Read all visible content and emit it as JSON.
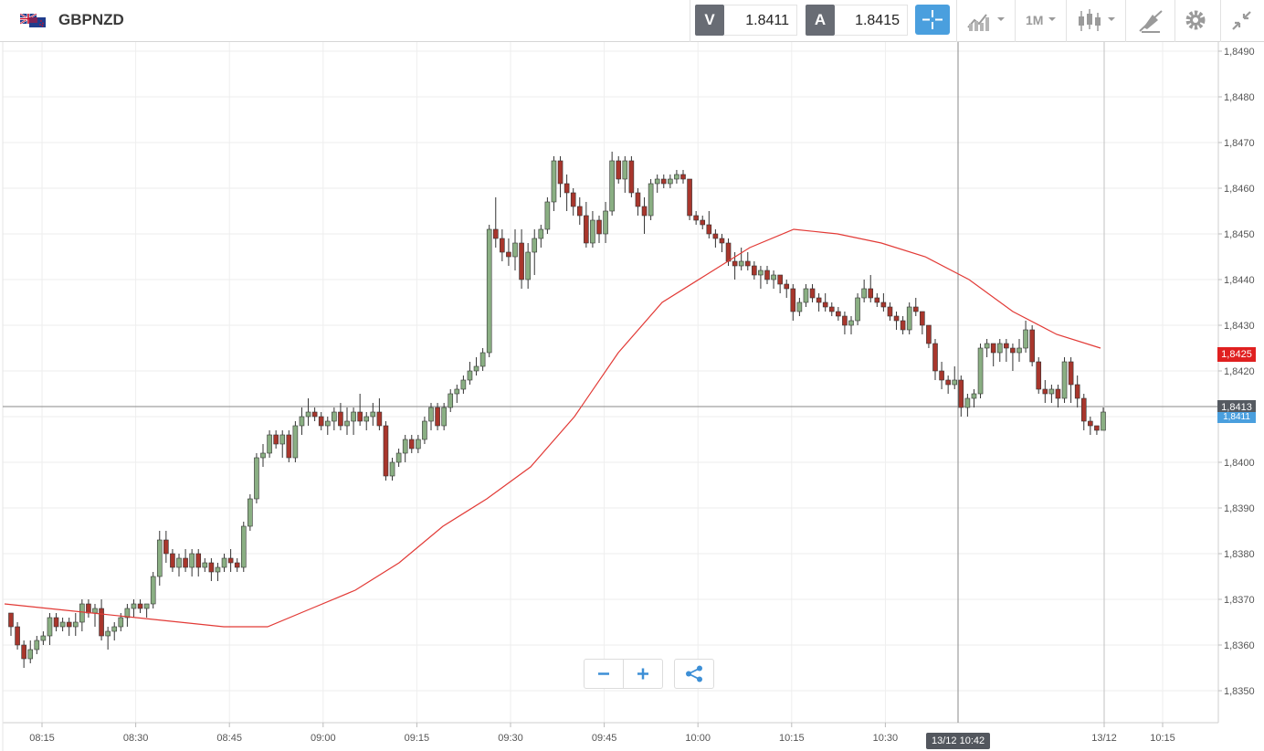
{
  "header": {
    "symbol": "GBPNZD",
    "flag_icon": "gbp-nzd-flag-icon",
    "bid_label": "V",
    "bid_value": "1.8411",
    "ask_label": "A",
    "ask_value": "1.8415",
    "tools": {
      "crosshair": "crosshair-icon",
      "indicators": "indicators-icon",
      "timeframe": "1M",
      "chart_type": "candlestick-icon",
      "draw": "draw-icon",
      "settings": "gear-icon",
      "collapse": "collapse-icon"
    }
  },
  "colors": {
    "up_candle": "#8aaf83",
    "down_candle": "#a8362c",
    "ma_line": "#e23a36",
    "accent": "#4a9fde",
    "last_price_tag": "#e02020",
    "bid_tag": "#4a9fde",
    "crosshair_tag": "#555a61"
  },
  "chart_data": {
    "type": "candlestick",
    "ylim": [
      1.8343,
      1.8492
    ],
    "y_ticks": [
      "1,8350",
      "1,8360",
      "1,8370",
      "1,8380",
      "1,8390",
      "1,8400",
      "1,8410",
      "1,8420",
      "1,8430",
      "1,8440",
      "1,8450",
      "1,8460",
      "1,8470",
      "1,8480",
      "1,8490"
    ],
    "x_ticks": [
      "08:15",
      "08:30",
      "08:45",
      "09:00",
      "09:15",
      "09:30",
      "09:45",
      "10:00",
      "10:15",
      "10:30",
      "13/12",
      "10:15"
    ],
    "candles": [
      [
        1.8367,
        1.8367,
        1.8362,
        1.8364
      ],
      [
        1.8364,
        1.8365,
        1.8359,
        1.836
      ],
      [
        1.836,
        1.8361,
        1.8355,
        1.8357
      ],
      [
        1.8357,
        1.8361,
        1.8356,
        1.8359
      ],
      [
        1.8359,
        1.8362,
        1.8358,
        1.8361
      ],
      [
        1.8361,
        1.8363,
        1.836,
        1.8362
      ],
      [
        1.8362,
        1.8367,
        1.836,
        1.8366
      ],
      [
        1.8366,
        1.8367,
        1.8363,
        1.8364
      ],
      [
        1.8364,
        1.8366,
        1.8363,
        1.8365
      ],
      [
        1.8365,
        1.8366,
        1.8362,
        1.8364
      ],
      [
        1.8364,
        1.8367,
        1.8362,
        1.8365
      ],
      [
        1.8365,
        1.837,
        1.8363,
        1.8369
      ],
      [
        1.8369,
        1.837,
        1.8366,
        1.8367
      ],
      [
        1.8367,
        1.8369,
        1.8364,
        1.8368
      ],
      [
        1.8368,
        1.837,
        1.8361,
        1.8362
      ],
      [
        1.8362,
        1.8364,
        1.8359,
        1.8363
      ],
      [
        1.8363,
        1.8365,
        1.8361,
        1.8364
      ],
      [
        1.8364,
        1.8367,
        1.8363,
        1.8366
      ],
      [
        1.8366,
        1.8369,
        1.8364,
        1.8368
      ],
      [
        1.8368,
        1.837,
        1.8366,
        1.8369
      ],
      [
        1.8369,
        1.837,
        1.8367,
        1.8368
      ],
      [
        1.8368,
        1.8369,
        1.8366,
        1.8369
      ],
      [
        1.8369,
        1.8376,
        1.8368,
        1.8375
      ],
      [
        1.8375,
        1.8385,
        1.8373,
        1.8383
      ],
      [
        1.8383,
        1.8385,
        1.8378,
        1.838
      ],
      [
        1.838,
        1.8381,
        1.8376,
        1.8377
      ],
      [
        1.8377,
        1.838,
        1.8375,
        1.8379
      ],
      [
        1.8379,
        1.8381,
        1.8376,
        1.8377
      ],
      [
        1.8377,
        1.8381,
        1.8375,
        1.838
      ],
      [
        1.838,
        1.8381,
        1.8375,
        1.8377
      ],
      [
        1.8377,
        1.8379,
        1.8376,
        1.8378
      ],
      [
        1.8378,
        1.8379,
        1.8374,
        1.8376
      ],
      [
        1.8376,
        1.8378,
        1.8374,
        1.8377
      ],
      [
        1.8377,
        1.838,
        1.8376,
        1.8379
      ],
      [
        1.8379,
        1.8381,
        1.8376,
        1.8378
      ],
      [
        1.8378,
        1.8379,
        1.8376,
        1.8377
      ],
      [
        1.8377,
        1.8387,
        1.8376,
        1.8386
      ],
      [
        1.8386,
        1.8393,
        1.8385,
        1.8392
      ],
      [
        1.8392,
        1.8402,
        1.8391,
        1.8401
      ],
      [
        1.8401,
        1.8404,
        1.8399,
        1.8402
      ],
      [
        1.8402,
        1.8407,
        1.8401,
        1.8406
      ],
      [
        1.8406,
        1.8407,
        1.8403,
        1.8404
      ],
      [
        1.8404,
        1.8407,
        1.8401,
        1.8406
      ],
      [
        1.8406,
        1.8407,
        1.84,
        1.8401
      ],
      [
        1.8401,
        1.8409,
        1.84,
        1.8408
      ],
      [
        1.8408,
        1.8412,
        1.8406,
        1.841
      ],
      [
        1.841,
        1.8414,
        1.8408,
        1.8411
      ],
      [
        1.8411,
        1.8412,
        1.8409,
        1.841
      ],
      [
        1.841,
        1.8411,
        1.8407,
        1.8408
      ],
      [
        1.8408,
        1.841,
        1.8406,
        1.8409
      ],
      [
        1.8409,
        1.8412,
        1.8407,
        1.8411
      ],
      [
        1.8411,
        1.8413,
        1.8407,
        1.8408
      ],
      [
        1.8408,
        1.8412,
        1.8406,
        1.8409
      ],
      [
        1.8409,
        1.8412,
        1.8406,
        1.8411
      ],
      [
        1.8411,
        1.8415,
        1.8408,
        1.8409
      ],
      [
        1.8409,
        1.8411,
        1.8407,
        1.841
      ],
      [
        1.841,
        1.8413,
        1.8408,
        1.8411
      ],
      [
        1.8411,
        1.8414,
        1.8407,
        1.8408
      ],
      [
        1.8408,
        1.8409,
        1.8396,
        1.8397
      ],
      [
        1.8397,
        1.8401,
        1.8396,
        1.84
      ],
      [
        1.84,
        1.8403,
        1.8399,
        1.8402
      ],
      [
        1.8402,
        1.8406,
        1.84,
        1.8405
      ],
      [
        1.8405,
        1.8406,
        1.8402,
        1.8403
      ],
      [
        1.8403,
        1.8406,
        1.8402,
        1.8405
      ],
      [
        1.8405,
        1.841,
        1.8404,
        1.8409
      ],
      [
        1.8409,
        1.8413,
        1.8407,
        1.8412
      ],
      [
        1.8412,
        1.8413,
        1.8407,
        1.8408
      ],
      [
        1.8408,
        1.8413,
        1.8407,
        1.8412
      ],
      [
        1.8412,
        1.8416,
        1.8411,
        1.8415
      ],
      [
        1.8415,
        1.8417,
        1.8413,
        1.8416
      ],
      [
        1.8416,
        1.8419,
        1.8415,
        1.8418
      ],
      [
        1.8418,
        1.8422,
        1.8417,
        1.842
      ],
      [
        1.842,
        1.8423,
        1.8419,
        1.8421
      ],
      [
        1.8421,
        1.8425,
        1.842,
        1.8424
      ],
      [
        1.8424,
        1.8452,
        1.8423,
        1.8451
      ],
      [
        1.8451,
        1.8458,
        1.8447,
        1.8449
      ],
      [
        1.8449,
        1.8451,
        1.8444,
        1.8446
      ],
      [
        1.8446,
        1.8449,
        1.8443,
        1.8445
      ],
      [
        1.8445,
        1.8451,
        1.8442,
        1.8448
      ],
      [
        1.8448,
        1.8451,
        1.8438,
        1.844
      ],
      [
        1.844,
        1.8448,
        1.8438,
        1.8446
      ],
      [
        1.8446,
        1.8451,
        1.8441,
        1.8449
      ],
      [
        1.8449,
        1.8452,
        1.8447,
        1.8451
      ],
      [
        1.8451,
        1.8458,
        1.845,
        1.8457
      ],
      [
        1.8457,
        1.8467,
        1.8455,
        1.8466
      ],
      [
        1.8466,
        1.8467,
        1.8458,
        1.8461
      ],
      [
        1.8461,
        1.8463,
        1.8455,
        1.8459
      ],
      [
        1.8459,
        1.846,
        1.8454,
        1.8456
      ],
      [
        1.8456,
        1.8458,
        1.8452,
        1.8454
      ],
      [
        1.8454,
        1.8457,
        1.8447,
        1.8448
      ],
      [
        1.8448,
        1.8455,
        1.8447,
        1.8453
      ],
      [
        1.8453,
        1.8454,
        1.8448,
        1.845
      ],
      [
        1.845,
        1.8457,
        1.8448,
        1.8455
      ],
      [
        1.8455,
        1.8468,
        1.8454,
        1.8466
      ],
      [
        1.8466,
        1.8467,
        1.8461,
        1.8462
      ],
      [
        1.8462,
        1.8467,
        1.8459,
        1.8466
      ],
      [
        1.8466,
        1.8467,
        1.8458,
        1.8459
      ],
      [
        1.8459,
        1.846,
        1.8454,
        1.8456
      ],
      [
        1.8456,
        1.8458,
        1.845,
        1.8454
      ],
      [
        1.8454,
        1.8462,
        1.8453,
        1.8461
      ],
      [
        1.8461,
        1.8463,
        1.8459,
        1.8462
      ],
      [
        1.8462,
        1.8463,
        1.846,
        1.8461
      ],
      [
        1.8461,
        1.8463,
        1.846,
        1.8462
      ],
      [
        1.8462,
        1.8464,
        1.8461,
        1.8463
      ],
      [
        1.8463,
        1.8464,
        1.8461,
        1.8462
      ],
      [
        1.8462,
        1.8462,
        1.8453,
        1.8454
      ],
      [
        1.8454,
        1.8455,
        1.8452,
        1.8453
      ],
      [
        1.8453,
        1.8454,
        1.8451,
        1.8452
      ],
      [
        1.8452,
        1.8455,
        1.8449,
        1.845
      ],
      [
        1.845,
        1.8451,
        1.8447,
        1.8449
      ],
      [
        1.8449,
        1.845,
        1.8446,
        1.8448
      ],
      [
        1.8448,
        1.8449,
        1.8443,
        1.8444
      ],
      [
        1.8444,
        1.8446,
        1.844,
        1.8443
      ],
      [
        1.8443,
        1.8447,
        1.8442,
        1.8444
      ],
      [
        1.8444,
        1.8446,
        1.8442,
        1.8443
      ],
      [
        1.8443,
        1.8444,
        1.844,
        1.8441
      ],
      [
        1.8441,
        1.8443,
        1.8438,
        1.8442
      ],
      [
        1.8442,
        1.8443,
        1.8439,
        1.844
      ],
      [
        1.844,
        1.8442,
        1.8438,
        1.8441
      ],
      [
        1.8441,
        1.8441,
        1.8437,
        1.8439
      ],
      [
        1.8439,
        1.844,
        1.8436,
        1.8438
      ],
      [
        1.8438,
        1.8439,
        1.8431,
        1.8433
      ],
      [
        1.8433,
        1.8436,
        1.8432,
        1.8435
      ],
      [
        1.8435,
        1.8439,
        1.8434,
        1.8438
      ],
      [
        1.8438,
        1.8439,
        1.8435,
        1.8436
      ],
      [
        1.8436,
        1.8437,
        1.8433,
        1.8435
      ],
      [
        1.8435,
        1.8437,
        1.8433,
        1.8434
      ],
      [
        1.8434,
        1.8435,
        1.8432,
        1.8433
      ],
      [
        1.8433,
        1.8434,
        1.8431,
        1.8432
      ],
      [
        1.8432,
        1.8433,
        1.8428,
        1.843
      ],
      [
        1.843,
        1.8432,
        1.8428,
        1.8431
      ],
      [
        1.8431,
        1.8437,
        1.843,
        1.8436
      ],
      [
        1.8436,
        1.844,
        1.8435,
        1.8438
      ],
      [
        1.8438,
        1.8441,
        1.8435,
        1.8436
      ],
      [
        1.8436,
        1.8437,
        1.8434,
        1.8435
      ],
      [
        1.8435,
        1.8437,
        1.8433,
        1.8434
      ],
      [
        1.8434,
        1.8435,
        1.8431,
        1.8432
      ],
      [
        1.8432,
        1.8433,
        1.8429,
        1.8431
      ],
      [
        1.8431,
        1.8432,
        1.8428,
        1.8429
      ],
      [
        1.8429,
        1.8435,
        1.8428,
        1.8434
      ],
      [
        1.8434,
        1.8436,
        1.8432,
        1.8433
      ],
      [
        1.8433,
        1.8433,
        1.8428,
        1.843
      ],
      [
        1.843,
        1.843,
        1.8425,
        1.8426
      ],
      [
        1.8426,
        1.8427,
        1.8418,
        1.842
      ],
      [
        1.842,
        1.8422,
        1.8416,
        1.8418
      ],
      [
        1.8418,
        1.8419,
        1.8415,
        1.8417
      ],
      [
        1.8417,
        1.8421,
        1.8416,
        1.8418
      ],
      [
        1.8418,
        1.8419,
        1.841,
        1.8412
      ],
      [
        1.8412,
        1.8415,
        1.841,
        1.8414
      ],
      [
        1.8414,
        1.8416,
        1.8412,
        1.8415
      ],
      [
        1.8415,
        1.8426,
        1.8414,
        1.8425
      ],
      [
        1.8425,
        1.8427,
        1.8423,
        1.8426
      ],
      [
        1.8426,
        1.8426,
        1.8421,
        1.8424
      ],
      [
        1.8424,
        1.8427,
        1.8422,
        1.8426
      ],
      [
        1.8426,
        1.8427,
        1.8422,
        1.8425
      ],
      [
        1.8425,
        1.8426,
        1.842,
        1.8424
      ],
      [
        1.8424,
        1.8427,
        1.8422,
        1.8425
      ],
      [
        1.8425,
        1.8431,
        1.8424,
        1.8429
      ],
      [
        1.8429,
        1.843,
        1.8421,
        1.8422
      ],
      [
        1.8422,
        1.8423,
        1.8415,
        1.8416
      ],
      [
        1.8416,
        1.8418,
        1.8413,
        1.8415
      ],
      [
        1.8415,
        1.8417,
        1.8413,
        1.8416
      ],
      [
        1.8416,
        1.8417,
        1.8412,
        1.8414
      ],
      [
        1.8414,
        1.8423,
        1.8413,
        1.8422
      ],
      [
        1.8422,
        1.8423,
        1.8413,
        1.8417
      ],
      [
        1.8417,
        1.8419,
        1.8412,
        1.8414
      ],
      [
        1.8414,
        1.8415,
        1.8407,
        1.8409
      ],
      [
        1.8409,
        1.841,
        1.8406,
        1.8408
      ],
      [
        1.8408,
        1.8408,
        1.8406,
        1.8407
      ],
      [
        1.8407,
        1.8412,
        1.8407,
        1.8411
      ]
    ],
    "ma": [
      1.8369,
      1.8368,
      1.8367,
      1.8366,
      1.8365,
      1.8364,
      1.8364,
      1.8368,
      1.8372,
      1.8378,
      1.8386,
      1.8392,
      1.8399,
      1.841,
      1.8424,
      1.8435,
      1.8441,
      1.8447,
      1.8451,
      1.845,
      1.8448,
      1.8445,
      1.844,
      1.8433,
      1.8428,
      1.8425
    ],
    "last_price": "1,8425",
    "current_price": "1,8413",
    "bid_price": "1,8411",
    "crosshair_time": "13/12 10:42",
    "candle_interval": "1M"
  }
}
